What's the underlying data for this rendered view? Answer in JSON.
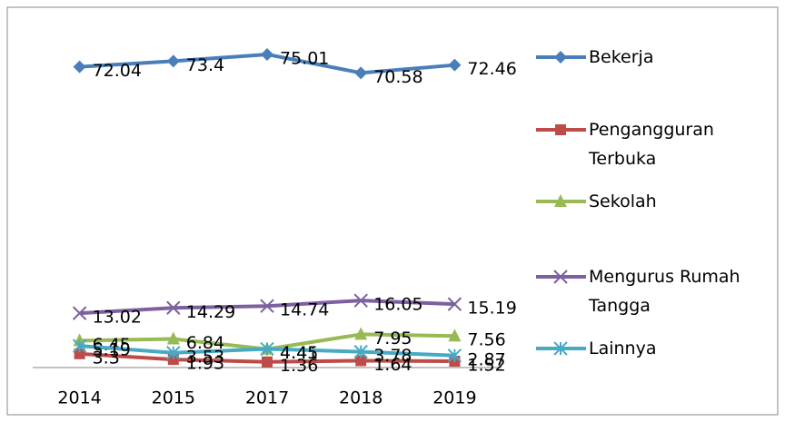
{
  "chart_data": {
    "type": "line",
    "categories": [
      "2014",
      "2015",
      "2017",
      "2018",
      "2019"
    ],
    "ylim": [
      0,
      80
    ],
    "series": [
      {
        "name": "Bekerja",
        "color": "#4a7ebb",
        "marker": "diamond",
        "values": [
          72.04,
          73.4,
          75.01,
          70.58,
          72.46
        ]
      },
      {
        "name": "Pengangguran Terbuka",
        "color": "#be4b48",
        "marker": "square",
        "values": [
          3.3,
          1.93,
          1.36,
          1.64,
          1.52
        ]
      },
      {
        "name": "Sekolah",
        "color": "#98b954",
        "marker": "triangle",
        "values": [
          6.45,
          6.84,
          4.41,
          7.95,
          7.56
        ]
      },
      {
        "name": "Mengurus Rumah Tangga",
        "color": "#7d60a0",
        "marker": "x",
        "values": [
          13.02,
          14.29,
          14.74,
          16.05,
          15.19
        ]
      },
      {
        "name": "Lainnya",
        "color": "#46aac5",
        "marker": "star",
        "values": [
          5.19,
          3.53,
          4.45,
          3.78,
          2.87
        ]
      }
    ],
    "legend": "right"
  }
}
